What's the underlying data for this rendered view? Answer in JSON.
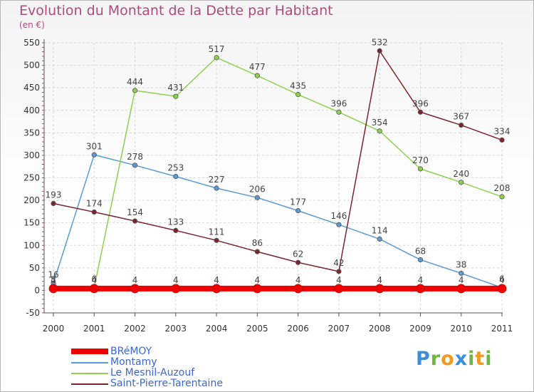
{
  "title": "Evolution du Montant de la Dette par Habitant",
  "subtitle": "(en €)",
  "logo": {
    "letters": [
      "P",
      "r",
      "o",
      "x",
      "i",
      "t",
      "i"
    ],
    "colors": [
      "#3a8fd6",
      "#6fb83f",
      "#f29a1f",
      "#3a8fd6",
      "#6fb83f",
      "#f29a1f",
      "#6fb83f"
    ]
  },
  "chart_data": {
    "type": "line",
    "title": "Evolution du Montant de la Dette par Habitant",
    "ylabel": "(en €)",
    "xlabel": "",
    "ylim": [
      -50,
      550
    ],
    "yticks": [
      -50,
      0,
      50,
      100,
      150,
      200,
      250,
      300,
      350,
      400,
      450,
      500,
      550
    ],
    "categories": [
      "2000",
      "2001",
      "2002",
      "2003",
      "2004",
      "2005",
      "2006",
      "2007",
      "2008",
      "2009",
      "2010",
      "2011"
    ],
    "series": [
      {
        "name": "BRéMOY",
        "color": "#ee0000",
        "values": [
          4,
          4,
          4,
          4,
          4,
          4,
          4,
          4,
          4,
          4,
          4,
          4
        ]
      },
      {
        "name": "Montamy",
        "color": "#5b9bd5",
        "values": [
          16,
          301,
          278,
          253,
          227,
          206,
          177,
          146,
          114,
          68,
          38,
          6
        ]
      },
      {
        "name": "Le Mesnil-Auzouf",
        "color": "#8fd14f",
        "values": [
          5,
          6,
          444,
          431,
          517,
          477,
          435,
          396,
          354,
          270,
          240,
          208
        ]
      },
      {
        "name": "Saint-Pierre-Tarentaine",
        "color": "#7b2530",
        "values": [
          193,
          174,
          154,
          133,
          111,
          86,
          62,
          42,
          532,
          396,
          367,
          334
        ]
      }
    ]
  }
}
